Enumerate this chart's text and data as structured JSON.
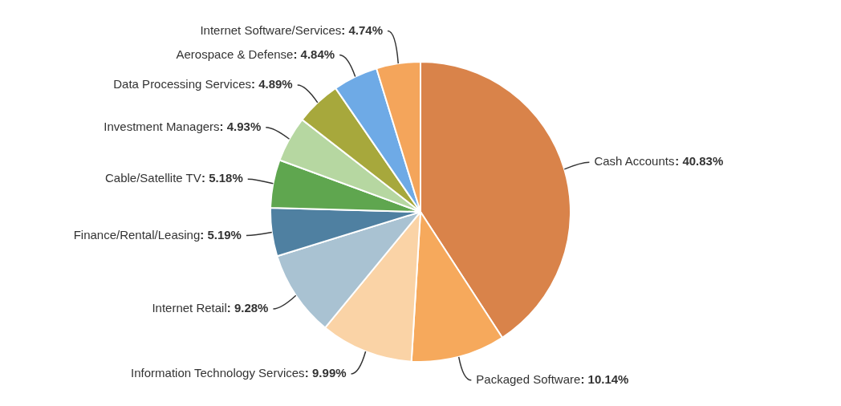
{
  "chart_data": {
    "type": "pie",
    "categories": [
      "Cash Accounts",
      "Packaged Software",
      "Information Technology Services",
      "Internet Retail",
      "Finance/Rental/Leasing",
      "Cable/Satellite TV",
      "Investment Managers",
      "Data Processing Services",
      "Aerospace & Defense",
      "Internet Software/Services"
    ],
    "values": [
      40.83,
      10.14,
      9.99,
      9.28,
      5.19,
      5.18,
      4.93,
      4.89,
      4.84,
      4.74
    ],
    "value_labels": [
      ": 40.83%",
      ": 10.14%",
      ": 9.99%",
      ": 9.28%",
      ": 5.19%",
      ": 5.18%",
      ": 4.93%",
      ": 4.89%",
      ": 4.84%",
      ": 4.74%"
    ],
    "colors": [
      "#d9834a",
      "#f6a95c",
      "#fad3a6",
      "#a9c2d2",
      "#4f80a1",
      "#5fa64f",
      "#b6d7a1",
      "#a7a83c",
      "#6eaae6",
      "#f4a55b"
    ],
    "legend": false
  }
}
